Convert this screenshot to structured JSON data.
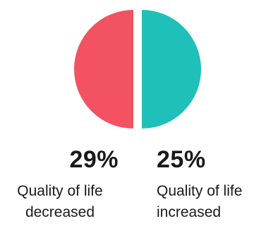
{
  "chart_data": {
    "type": "pie",
    "slices": [
      {
        "label": "Quality of life decreased",
        "value": 29,
        "display": "29%",
        "color": "#f25262"
      },
      {
        "label": "Quality of life increased",
        "value": 25,
        "display": "25%",
        "color": "#1fc0b9"
      }
    ]
  },
  "stats": {
    "decreased": {
      "percent": "29%",
      "line1": "Quality of life",
      "line2": "decreased"
    },
    "increased": {
      "percent": "25%",
      "line1": "Quality of life",
      "line2": "increased"
    }
  }
}
